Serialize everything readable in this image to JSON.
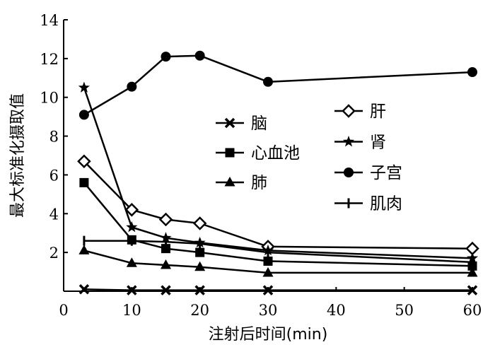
{
  "chart_data": {
    "type": "line",
    "xlabel": "注射后时间(min)",
    "ylabel": "最大标准化摄取值",
    "xlim": [
      0,
      60
    ],
    "ylim": [
      0,
      14
    ],
    "xticks": [
      0,
      10,
      20,
      30,
      40,
      50,
      60
    ],
    "yticks": [
      2,
      4,
      6,
      8,
      10,
      12,
      14
    ],
    "grid": false,
    "legend_position": "upper-middle, two columns",
    "series": [
      {
        "name": "脑",
        "marker": "x",
        "x": [
          3,
          10,
          15,
          20,
          30,
          60
        ],
        "y": [
          0.1,
          0.05,
          0.05,
          0.05,
          0.05,
          0.05
        ]
      },
      {
        "name": "心血池",
        "marker": "square",
        "x": [
          3,
          10,
          15,
          20,
          30,
          60
        ],
        "y": [
          5.6,
          2.65,
          2.2,
          2.0,
          1.55,
          1.3
        ]
      },
      {
        "name": "肺",
        "marker": "triangle",
        "x": [
          3,
          10,
          15,
          20,
          30,
          60
        ],
        "y": [
          2.1,
          1.45,
          1.35,
          1.25,
          0.95,
          0.95
        ]
      },
      {
        "name": "肝",
        "marker": "diamond",
        "x": [
          3,
          10,
          15,
          20,
          30,
          60
        ],
        "y": [
          6.7,
          4.2,
          3.7,
          3.5,
          2.3,
          2.2
        ]
      },
      {
        "name": "肾",
        "marker": "star",
        "x": [
          3,
          10,
          15,
          20,
          30,
          60
        ],
        "y": [
          10.5,
          3.3,
          2.75,
          2.5,
          2.1,
          1.7
        ]
      },
      {
        "name": "子宫",
        "marker": "circle",
        "x": [
          3,
          10,
          15,
          20,
          30,
          60
        ],
        "y": [
          9.1,
          10.55,
          12.1,
          12.15,
          10.8,
          11.3
        ]
      },
      {
        "name": "肌肉",
        "marker": "tick",
        "x": [
          3,
          10,
          15,
          20,
          30,
          60
        ],
        "y": [
          2.6,
          2.6,
          2.55,
          2.45,
          2.0,
          1.5
        ]
      }
    ],
    "colors": {
      "line": "#000000",
      "background": "#ffffff"
    }
  }
}
